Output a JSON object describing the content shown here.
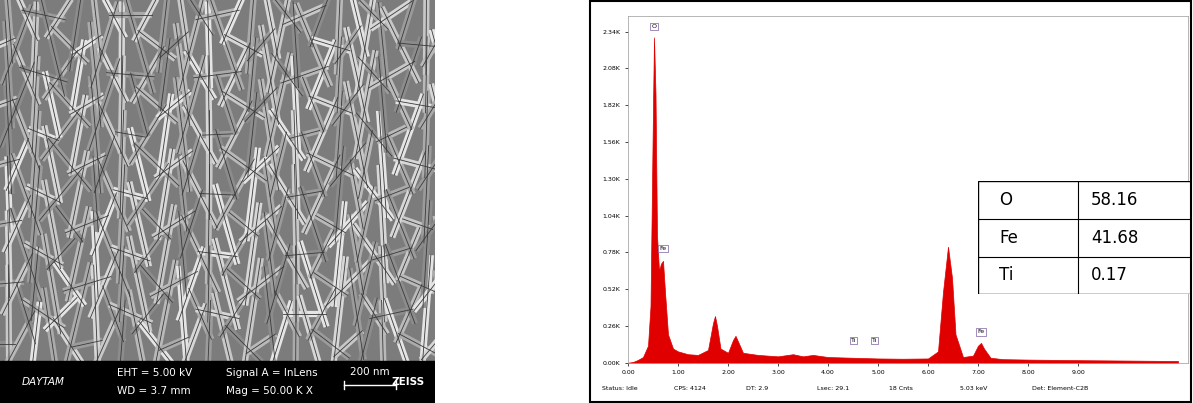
{
  "sem_image": {
    "operator": "DAYTAM",
    "eht": "EHT = 5.00 kV",
    "wd": "WD = 3.7 mm",
    "signal": "Signal A = InLens",
    "mag": "Mag = 50.00 K X",
    "scale_bar": "200 nm",
    "brand": "ZEISS"
  },
  "chart_data": {
    "type": "area",
    "color": "#e00000",
    "grid": false,
    "x": [
      0.0,
      0.1,
      0.2,
      0.3,
      0.4,
      0.45,
      0.5,
      0.52,
      0.55,
      0.58,
      0.62,
      0.66,
      0.7,
      0.74,
      0.8,
      0.9,
      1.0,
      1.2,
      1.4,
      1.6,
      1.7,
      1.74,
      1.78,
      1.85,
      2.0,
      2.1,
      2.15,
      2.2,
      2.3,
      2.6,
      3.0,
      3.3,
      3.5,
      3.7,
      4.0,
      4.5,
      5.0,
      5.5,
      6.0,
      6.2,
      6.3,
      6.4,
      6.48,
      6.55,
      6.7,
      6.9,
      7.0,
      7.06,
      7.12,
      7.25,
      7.5,
      8.0,
      8.5,
      9.0,
      10.0,
      11.0
    ],
    "values": [
      0,
      5,
      20,
      40,
      120,
      400,
      1800,
      2300,
      1900,
      900,
      650,
      700,
      720,
      500,
      200,
      100,
      80,
      60,
      55,
      90,
      280,
      330,
      260,
      100,
      70,
      160,
      190,
      150,
      70,
      55,
      45,
      60,
      45,
      55,
      40,
      35,
      30,
      28,
      30,
      80,
      500,
      820,
      600,
      200,
      40,
      50,
      120,
      140,
      100,
      35,
      25,
      22,
      20,
      18,
      15,
      12
    ],
    "xlim": [
      0,
      11.2
    ],
    "xticks": [
      {
        "value": 0,
        "label": "0.00"
      },
      {
        "value": 1,
        "label": "1.00"
      },
      {
        "value": 2,
        "label": "2.00"
      },
      {
        "value": 3,
        "label": "3.00"
      },
      {
        "value": 4,
        "label": "4.00"
      },
      {
        "value": 5,
        "label": "5.00"
      },
      {
        "value": 6,
        "label": "6.00"
      },
      {
        "value": 7,
        "label": "7.00"
      },
      {
        "value": 8,
        "label": "8.00"
      },
      {
        "value": 9,
        "label": "9.00"
      }
    ],
    "ylim": [
      0,
      2450
    ],
    "yticks": [
      {
        "value": 0,
        "label": "0.00K"
      },
      {
        "value": 260,
        "label": "0.26K"
      },
      {
        "value": 520,
        "label": "0.52K"
      },
      {
        "value": 780,
        "label": "0.78K"
      },
      {
        "value": 1040,
        "label": "1.04K"
      },
      {
        "value": 1300,
        "label": "1.30K"
      },
      {
        "value": 1560,
        "label": "1.56K"
      },
      {
        "value": 1820,
        "label": "1.82K"
      },
      {
        "value": 2080,
        "label": "2.08K"
      },
      {
        "value": 2340,
        "label": "2.34K"
      }
    ],
    "annotations": [
      {
        "text": "O",
        "x": 0.52,
        "y": 2330
      },
      {
        "text": "Fe",
        "x": 0.7,
        "y": 760
      },
      {
        "text": "Ti",
        "x": 4.51,
        "y": 110
      },
      {
        "text": "Ti",
        "x": 4.93,
        "y": 110
      },
      {
        "text": "Fe",
        "x": 7.06,
        "y": 170
      }
    ],
    "status_bar": [
      "Status: Idle",
      "CPS: 4124",
      "DT: 2.9",
      "Lsec: 29.1",
      "18 Cnts",
      "5.03 keV",
      "Det: Element-C2B"
    ]
  },
  "table": {
    "rows": [
      [
        "O",
        "58.16"
      ],
      [
        "Fe",
        "41.68"
      ],
      [
        "Ti",
        "0.17"
      ]
    ]
  }
}
